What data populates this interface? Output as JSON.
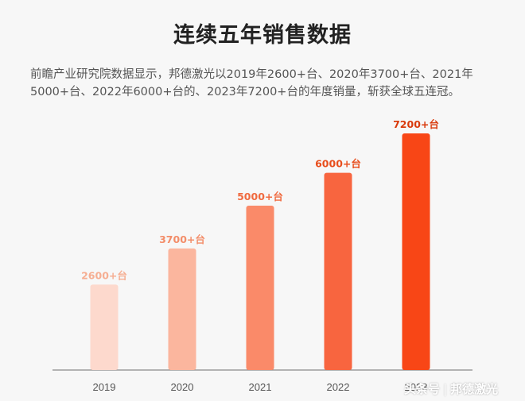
{
  "header": {
    "title": "连续五年销售数据",
    "description": "前瞻产业研究院数据显示，邦德激光以2019年2600+台、2020年3700+台、2021年5000+台、2022年6000+台的、2023年7200+台的年度销量，斩获全球五连冠。"
  },
  "watermark": {
    "prefix": "头条号",
    "separator": "|",
    "brand": "邦德激光"
  },
  "chart_data": {
    "type": "bar",
    "categories": [
      "2019",
      "2020",
      "2021",
      "2022",
      "2023"
    ],
    "values": [
      2600,
      3700,
      5000,
      6000,
      7200
    ],
    "data_labels": [
      "2600+台",
      "3700+台",
      "5000+台",
      "6000+台",
      "7200+台"
    ],
    "bar_colors": [
      "#fdd9cd",
      "#fbb69e",
      "#fa8a69",
      "#f8653f",
      "#f84616"
    ],
    "label_colors": [
      "#f6ae92",
      "#f38d69",
      "#f06a3f",
      "#e84e1d",
      "#d93a0c"
    ],
    "title": "",
    "xlabel": "",
    "ylabel": "",
    "ylim": [
      0,
      7200
    ],
    "grid": false
  }
}
